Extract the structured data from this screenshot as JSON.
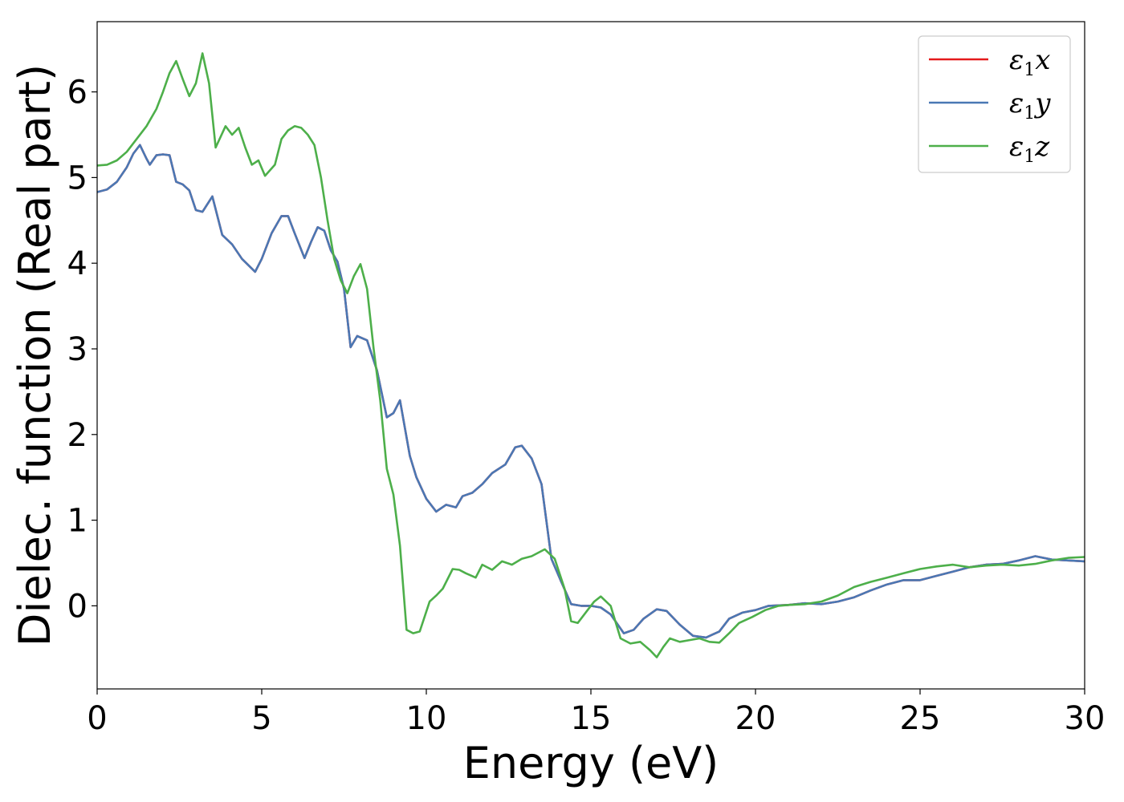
{
  "chart_data": {
    "type": "line",
    "xlabel": "Energy (eV)",
    "ylabel": "Dielec. function (Real part)",
    "xlim": [
      0,
      30
    ],
    "ylim": [
      -0.97,
      6.82
    ],
    "xticks": [
      0,
      5,
      10,
      15,
      20,
      25,
      30
    ],
    "yticks": [
      0,
      1,
      2,
      3,
      4,
      5,
      6
    ],
    "grid": false,
    "legend_position": "top-right",
    "series": [
      {
        "name": "ε1x",
        "legend_base": "ε",
        "legend_sub": "1",
        "legend_var": "x",
        "color": "#e41a1c",
        "x": [
          0,
          0.3,
          0.6,
          0.9,
          1.1,
          1.3,
          1.5,
          1.6,
          1.8,
          2.0,
          2.2,
          2.4,
          2.6,
          2.8,
          3.0,
          3.2,
          3.5,
          3.8,
          4.1,
          4.4,
          4.8,
          5.0,
          5.3,
          5.6,
          5.8,
          6.0,
          6.3,
          6.5,
          6.7,
          6.9,
          7.1,
          7.3,
          7.5,
          7.7,
          7.9,
          8.2,
          8.5,
          8.8,
          9.0,
          9.2,
          9.5,
          9.7,
          10.0,
          10.3,
          10.6,
          10.9,
          11.1,
          11.4,
          11.7,
          12.0,
          12.4,
          12.7,
          12.9,
          13.2,
          13.5,
          13.8,
          14.1,
          14.4,
          14.7,
          15.0,
          15.3,
          15.6,
          16.0,
          16.3,
          16.6,
          17.0,
          17.3,
          17.7,
          18.1,
          18.5,
          18.9,
          19.2,
          19.6,
          20.0,
          20.4,
          21.0,
          21.5,
          22.0,
          22.5,
          23.0,
          23.5,
          24.0,
          24.5,
          25.0,
          25.5,
          26.0,
          26.5,
          27.0,
          27.5,
          28.0,
          28.5,
          29.0,
          29.5,
          30.0
        ],
        "y": [
          4.83,
          4.86,
          4.95,
          5.12,
          5.28,
          5.38,
          5.22,
          5.15,
          5.26,
          5.27,
          5.26,
          4.95,
          4.92,
          4.85,
          4.62,
          4.6,
          4.78,
          4.33,
          4.22,
          4.05,
          3.9,
          4.05,
          4.35,
          4.55,
          4.55,
          4.35,
          4.06,
          4.25,
          4.42,
          4.38,
          4.15,
          4.02,
          3.7,
          3.02,
          3.15,
          3.1,
          2.75,
          2.2,
          2.25,
          2.4,
          1.75,
          1.5,
          1.25,
          1.1,
          1.18,
          1.15,
          1.28,
          1.32,
          1.42,
          1.55,
          1.65,
          1.85,
          1.87,
          1.72,
          1.42,
          0.55,
          0.28,
          0.02,
          0.0,
          0.0,
          -0.02,
          -0.1,
          -0.32,
          -0.28,
          -0.15,
          -0.04,
          -0.06,
          -0.22,
          -0.35,
          -0.37,
          -0.3,
          -0.15,
          -0.08,
          -0.05,
          0.0,
          0.01,
          0.03,
          0.02,
          0.05,
          0.1,
          0.18,
          0.25,
          0.3,
          0.3,
          0.35,
          0.4,
          0.45,
          0.48,
          0.49,
          0.53,
          0.58,
          0.54,
          0.53,
          0.52
        ]
      },
      {
        "name": "ε1y",
        "legend_base": "ε",
        "legend_sub": "1",
        "legend_var": "y",
        "color": "#4a78b4",
        "x": [
          0,
          0.3,
          0.6,
          0.9,
          1.1,
          1.3,
          1.5,
          1.6,
          1.8,
          2.0,
          2.2,
          2.4,
          2.6,
          2.8,
          3.0,
          3.2,
          3.5,
          3.8,
          4.1,
          4.4,
          4.8,
          5.0,
          5.3,
          5.6,
          5.8,
          6.0,
          6.3,
          6.5,
          6.7,
          6.9,
          7.1,
          7.3,
          7.5,
          7.7,
          7.9,
          8.2,
          8.5,
          8.8,
          9.0,
          9.2,
          9.5,
          9.7,
          10.0,
          10.3,
          10.6,
          10.9,
          11.1,
          11.4,
          11.7,
          12.0,
          12.4,
          12.7,
          12.9,
          13.2,
          13.5,
          13.8,
          14.1,
          14.4,
          14.7,
          15.0,
          15.3,
          15.6,
          16.0,
          16.3,
          16.6,
          17.0,
          17.3,
          17.7,
          18.1,
          18.5,
          18.9,
          19.2,
          19.6,
          20.0,
          20.4,
          21.0,
          21.5,
          22.0,
          22.5,
          23.0,
          23.5,
          24.0,
          24.5,
          25.0,
          25.5,
          26.0,
          26.5,
          27.0,
          27.5,
          28.0,
          28.5,
          29.0,
          29.5,
          30.0
        ],
        "y": [
          4.83,
          4.86,
          4.95,
          5.12,
          5.28,
          5.38,
          5.22,
          5.15,
          5.26,
          5.27,
          5.26,
          4.95,
          4.92,
          4.85,
          4.62,
          4.6,
          4.78,
          4.33,
          4.22,
          4.05,
          3.9,
          4.05,
          4.35,
          4.55,
          4.55,
          4.35,
          4.06,
          4.25,
          4.42,
          4.38,
          4.15,
          4.02,
          3.7,
          3.02,
          3.15,
          3.1,
          2.75,
          2.2,
          2.25,
          2.4,
          1.75,
          1.5,
          1.25,
          1.1,
          1.18,
          1.15,
          1.28,
          1.32,
          1.42,
          1.55,
          1.65,
          1.85,
          1.87,
          1.72,
          1.42,
          0.55,
          0.28,
          0.02,
          0.0,
          0.0,
          -0.02,
          -0.1,
          -0.32,
          -0.28,
          -0.15,
          -0.04,
          -0.06,
          -0.22,
          -0.35,
          -0.37,
          -0.3,
          -0.15,
          -0.08,
          -0.05,
          0.0,
          0.01,
          0.03,
          0.02,
          0.05,
          0.1,
          0.18,
          0.25,
          0.3,
          0.3,
          0.35,
          0.4,
          0.45,
          0.48,
          0.49,
          0.53,
          0.58,
          0.54,
          0.53,
          0.52
        ]
      },
      {
        "name": "ε1z",
        "legend_base": "ε",
        "legend_sub": "1",
        "legend_var": "z",
        "color": "#4daf4a",
        "x": [
          0,
          0.3,
          0.6,
          0.9,
          1.2,
          1.5,
          1.8,
          2.0,
          2.2,
          2.4,
          2.6,
          2.8,
          3.0,
          3.2,
          3.4,
          3.6,
          3.9,
          4.1,
          4.3,
          4.5,
          4.7,
          4.9,
          5.1,
          5.4,
          5.6,
          5.8,
          6.0,
          6.2,
          6.4,
          6.6,
          6.8,
          7.0,
          7.2,
          7.4,
          7.6,
          7.8,
          8.0,
          8.2,
          8.4,
          8.6,
          8.8,
          9.0,
          9.2,
          9.4,
          9.6,
          9.8,
          10.1,
          10.3,
          10.5,
          10.8,
          11.0,
          11.2,
          11.5,
          11.7,
          12.0,
          12.3,
          12.6,
          12.9,
          13.2,
          13.6,
          13.9,
          14.2,
          14.4,
          14.6,
          14.9,
          15.1,
          15.3,
          15.6,
          15.9,
          16.2,
          16.5,
          16.8,
          17.0,
          17.2,
          17.4,
          17.7,
          18.0,
          18.3,
          18.6,
          18.9,
          19.2,
          19.5,
          19.9,
          20.3,
          20.7,
          21.0,
          21.5,
          22.0,
          22.5,
          23.0,
          23.5,
          24.0,
          24.5,
          25.0,
          25.5,
          26.0,
          26.5,
          27.0,
          27.5,
          28.0,
          28.5,
          29.0,
          29.5,
          30.0
        ],
        "y": [
          5.14,
          5.15,
          5.2,
          5.3,
          5.45,
          5.6,
          5.8,
          6.0,
          6.22,
          6.36,
          6.15,
          5.95,
          6.1,
          6.45,
          6.1,
          5.35,
          5.6,
          5.5,
          5.58,
          5.35,
          5.15,
          5.2,
          5.02,
          5.15,
          5.45,
          5.55,
          5.6,
          5.58,
          5.5,
          5.38,
          5.0,
          4.5,
          4.05,
          3.8,
          3.65,
          3.85,
          3.99,
          3.7,
          3.0,
          2.4,
          1.6,
          1.3,
          0.7,
          -0.28,
          -0.32,
          -0.3,
          0.05,
          0.12,
          0.2,
          0.43,
          0.42,
          0.38,
          0.33,
          0.48,
          0.42,
          0.52,
          0.48,
          0.55,
          0.58,
          0.66,
          0.55,
          0.2,
          -0.18,
          -0.2,
          -0.05,
          0.05,
          0.11,
          0.0,
          -0.38,
          -0.44,
          -0.42,
          -0.52,
          -0.6,
          -0.48,
          -0.38,
          -0.42,
          -0.4,
          -0.38,
          -0.42,
          -0.43,
          -0.32,
          -0.2,
          -0.13,
          -0.05,
          0.0,
          0.01,
          0.02,
          0.05,
          0.12,
          0.22,
          0.28,
          0.33,
          0.38,
          0.43,
          0.46,
          0.48,
          0.45,
          0.47,
          0.48,
          0.47,
          0.49,
          0.53,
          0.56,
          0.57
        ]
      }
    ]
  }
}
